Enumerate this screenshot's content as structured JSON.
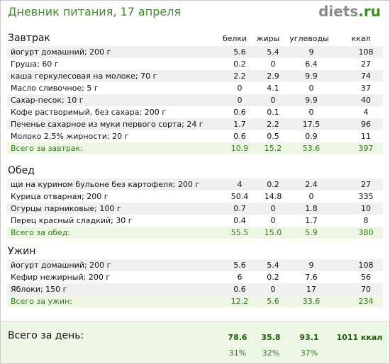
{
  "header": {
    "title": "Дневник питания, 17 апреля",
    "logo_main": "diets",
    "logo_tld": ".ru"
  },
  "columns": [
    "белки",
    "жиры",
    "углеводы",
    "ккал"
  ],
  "sections": [
    {
      "title": "Завтрак",
      "items": [
        {
          "name": "йогурт домашний; 200 г",
          "protein": "5.6",
          "fat": "5.4",
          "carbs": "9",
          "kcal": "108"
        },
        {
          "name": "Груша; 60 г",
          "protein": "0.2",
          "fat": "0",
          "carbs": "6.4",
          "kcal": "27"
        },
        {
          "name": "каша геркулесовая на молоке; 70 г",
          "protein": "2.2",
          "fat": "2.9",
          "carbs": "9.9",
          "kcal": "74"
        },
        {
          "name": "Масло сливочное; 5 г",
          "protein": "0",
          "fat": "4.1",
          "carbs": "0",
          "kcal": "37"
        },
        {
          "name": "Сахар-песок; 10 г",
          "protein": "0",
          "fat": "0",
          "carbs": "9.9",
          "kcal": "40"
        },
        {
          "name": "Кофе растворимый, без сахара; 200 г",
          "protein": "0.6",
          "fat": "0.1",
          "carbs": "0",
          "kcal": "4"
        },
        {
          "name": "Печенье сахарное из муки первого сорта; 24 г",
          "protein": "1.7",
          "fat": "2.2",
          "carbs": "17.5",
          "kcal": "96"
        },
        {
          "name": "Молоко 2,5% жирности; 20 г",
          "protein": "0.6",
          "fat": "0.5",
          "carbs": "0.9",
          "kcal": "11"
        }
      ],
      "total": {
        "name": "Всего за завтрак:",
        "protein": "10.9",
        "fat": "15.2",
        "carbs": "53.6",
        "kcal": "397"
      }
    },
    {
      "title": "Обед",
      "items": [
        {
          "name": "щи на курином бульоне без картофеля; 200 г",
          "protein": "4",
          "fat": "0.2",
          "carbs": "2.4",
          "kcal": "27"
        },
        {
          "name": "Курица отварная; 200 г",
          "protein": "50.4",
          "fat": "14.8",
          "carbs": "0",
          "kcal": "335"
        },
        {
          "name": "Огурцы парниковые; 100 г",
          "protein": "0.7",
          "fat": "0",
          "carbs": "1.8",
          "kcal": "10"
        },
        {
          "name": "Перец красный сладкий; 30 г",
          "protein": "0.4",
          "fat": "0",
          "carbs": "1.7",
          "kcal": "8"
        }
      ],
      "total": {
        "name": "Всего за обед:",
        "protein": "55.5",
        "fat": "15.0",
        "carbs": "5.9",
        "kcal": "380"
      }
    },
    {
      "title": "Ужин",
      "items": [
        {
          "name": "йогурт домашний; 200 г",
          "protein": "5.6",
          "fat": "5.4",
          "carbs": "9",
          "kcal": "108"
        },
        {
          "name": "Кефир нежирный; 200 г",
          "protein": "6",
          "fat": "0.2",
          "carbs": "7.6",
          "kcal": "56"
        },
        {
          "name": "Яблоки; 150 г",
          "protein": "0.6",
          "fat": "0",
          "carbs": "17",
          "kcal": "70"
        }
      ],
      "total": {
        "name": "Всего за ужин:",
        "protein": "12.2",
        "fat": "5.6",
        "carbs": "33.6",
        "kcal": "234"
      }
    }
  ],
  "day_total": {
    "label": "Всего за день:",
    "protein": "78.6",
    "fat": "35.8",
    "carbs": "93.1",
    "kcal": "1011 ккал",
    "protein_pct": "31%",
    "fat_pct": "32%",
    "carbs_pct": "37%"
  },
  "colors": {
    "accent_green": "#3d8f1f",
    "total_bg": "#eef6e6",
    "stripe_bg": "#f0f0f0"
  }
}
